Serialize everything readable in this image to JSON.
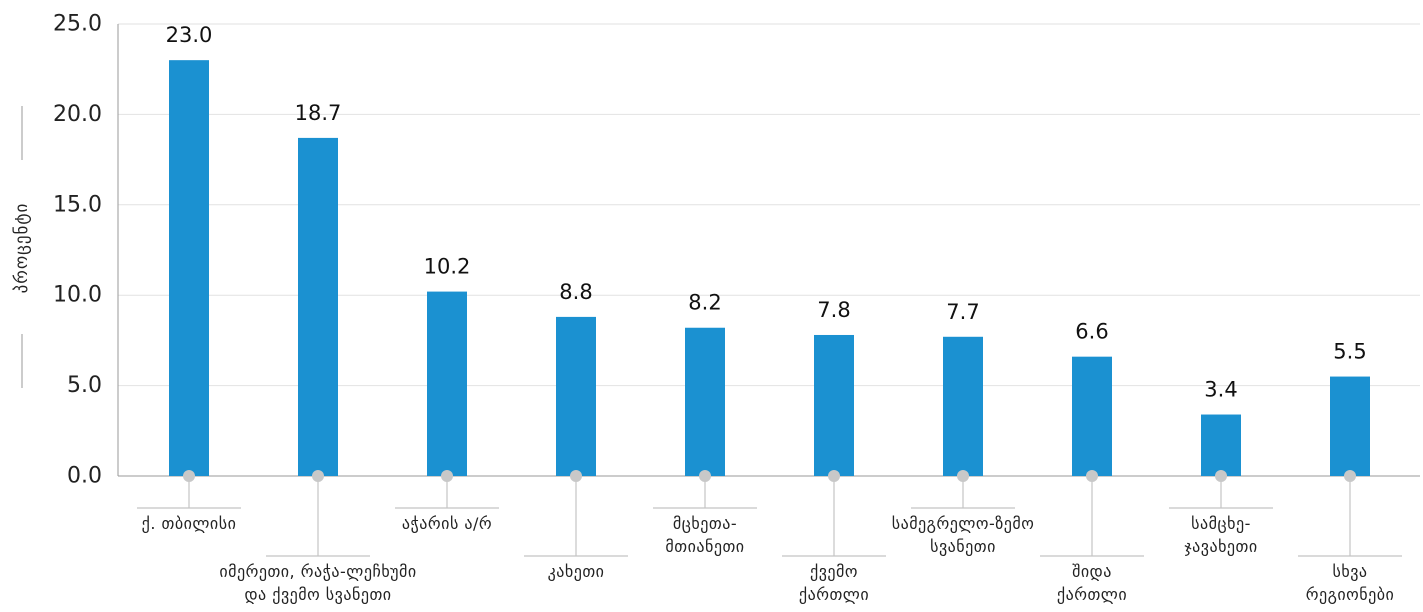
{
  "chart_data": {
    "type": "bar",
    "ylabel": "პროცენტი",
    "ylim": [
      0,
      25
    ],
    "yticks": [
      "0.0",
      "5.0",
      "10.0",
      "15.0",
      "20.0",
      "25.0"
    ],
    "grid": true,
    "bar_color": "#1b91d1",
    "categories": [
      [
        "ქ. თბილისი"
      ],
      [
        "იმერეთი, რაჭა-ლეჩხუმი",
        "და ქვემო სვანეთი"
      ],
      [
        "აჭარის ა/რ"
      ],
      [
        "კახეთი"
      ],
      [
        "მცხეთა-",
        "მთიანეთი"
      ],
      [
        "ქვემო",
        "ქართლი"
      ],
      [
        "სამეგრელო-ზემო",
        "სვანეთი"
      ],
      [
        "შიდა",
        "ქართლი"
      ],
      [
        "სამცხე-",
        "ჯავახეთი"
      ],
      [
        "სხვა",
        "რეგიონები"
      ]
    ],
    "values": [
      23.0,
      18.7,
      10.2,
      8.8,
      8.2,
      7.8,
      7.7,
      6.6,
      3.4,
      5.5
    ],
    "value_labels": [
      "23.0",
      "18.7",
      "10.2",
      "8.8",
      "8.2",
      "7.8",
      "7.7",
      "6.6",
      "3.4",
      "5.5"
    ]
  }
}
